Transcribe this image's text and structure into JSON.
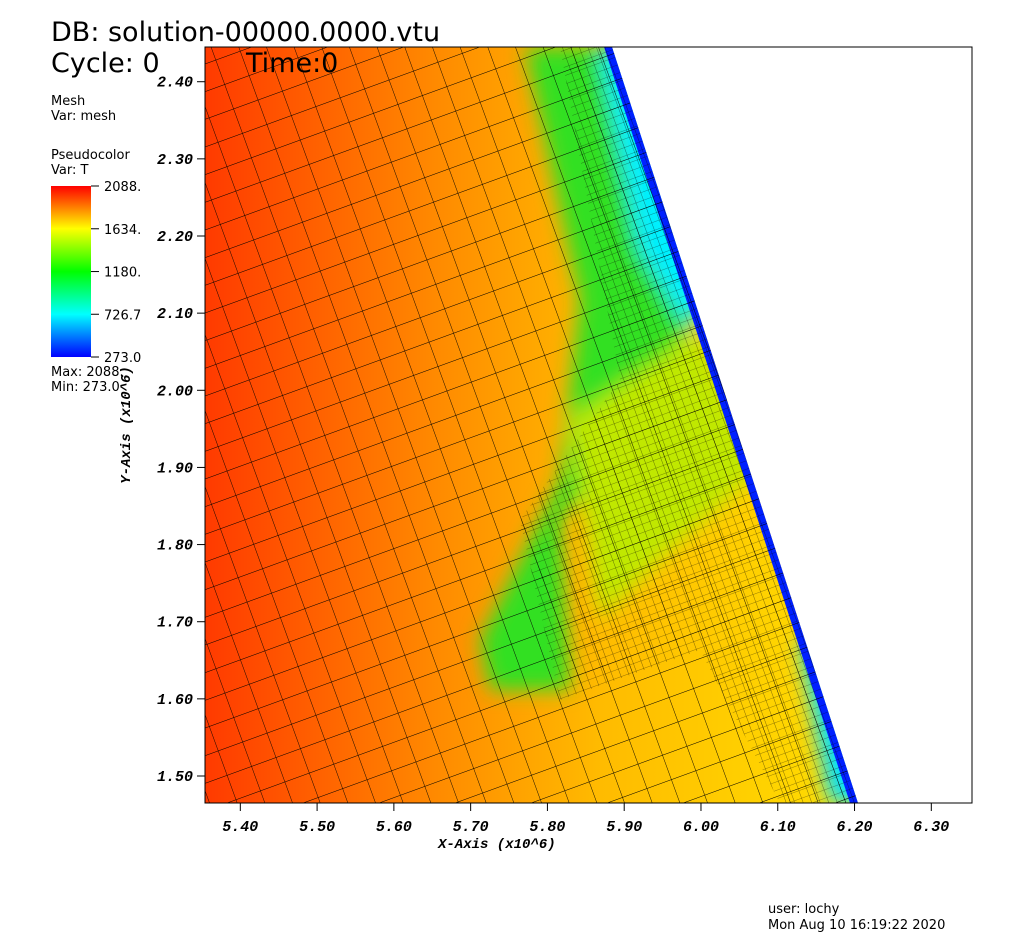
{
  "chart_data": {
    "type": "pseudocolor",
    "title": "DB: solution-00000.0000.vtu",
    "cycle": "Cycle: 0",
    "time": "Time:0",
    "plots": [
      {
        "name": "Mesh",
        "var": "Var: mesh"
      },
      {
        "name": "Pseudocolor",
        "var": "Var: T"
      }
    ],
    "x_label": "X-Axis (x10^6)",
    "y_label": "Y-Axis (x10^6)",
    "xlim": [
      5.354,
      6.353
    ],
    "ylim": [
      1.465,
      2.445
    ],
    "xticks": [
      {
        "value": 5.4,
        "label": "5.40"
      },
      {
        "value": 5.5,
        "label": "5.50"
      },
      {
        "value": 5.6,
        "label": "5.60"
      },
      {
        "value": 5.7,
        "label": "5.70"
      },
      {
        "value": 5.8,
        "label": "5.80"
      },
      {
        "value": 5.9,
        "label": "5.90"
      },
      {
        "value": 6.0,
        "label": "6.00"
      },
      {
        "value": 6.1,
        "label": "6.10"
      },
      {
        "value": 6.2,
        "label": "6.20"
      },
      {
        "value": 6.3,
        "label": "6.30"
      }
    ],
    "yticks": [
      {
        "value": 1.5,
        "label": "1.50"
      },
      {
        "value": 1.6,
        "label": "1.60"
      },
      {
        "value": 1.7,
        "label": "1.70"
      },
      {
        "value": 1.8,
        "label": "1.80"
      },
      {
        "value": 1.9,
        "label": "1.90"
      },
      {
        "value": 2.0,
        "label": "2.00"
      },
      {
        "value": 2.1,
        "label": "2.10"
      },
      {
        "value": 2.2,
        "label": "2.20"
      },
      {
        "value": 2.3,
        "label": "2.30"
      },
      {
        "value": 2.4,
        "label": "2.40"
      }
    ],
    "colorbar_ticks": [
      {
        "value": 2088,
        "label": "2088."
      },
      {
        "value": 1634,
        "label": "1634."
      },
      {
        "value": 1180,
        "label": "1180."
      },
      {
        "value": 726.7,
        "label": "726.7"
      },
      {
        "value": 273.0,
        "label": "273.0"
      }
    ],
    "max_label": "Max:  2088.",
    "min_label": "Min:  273.0",
    "user": "user: lochy",
    "date": "Mon Aug 10 16:19:22 2020"
  }
}
